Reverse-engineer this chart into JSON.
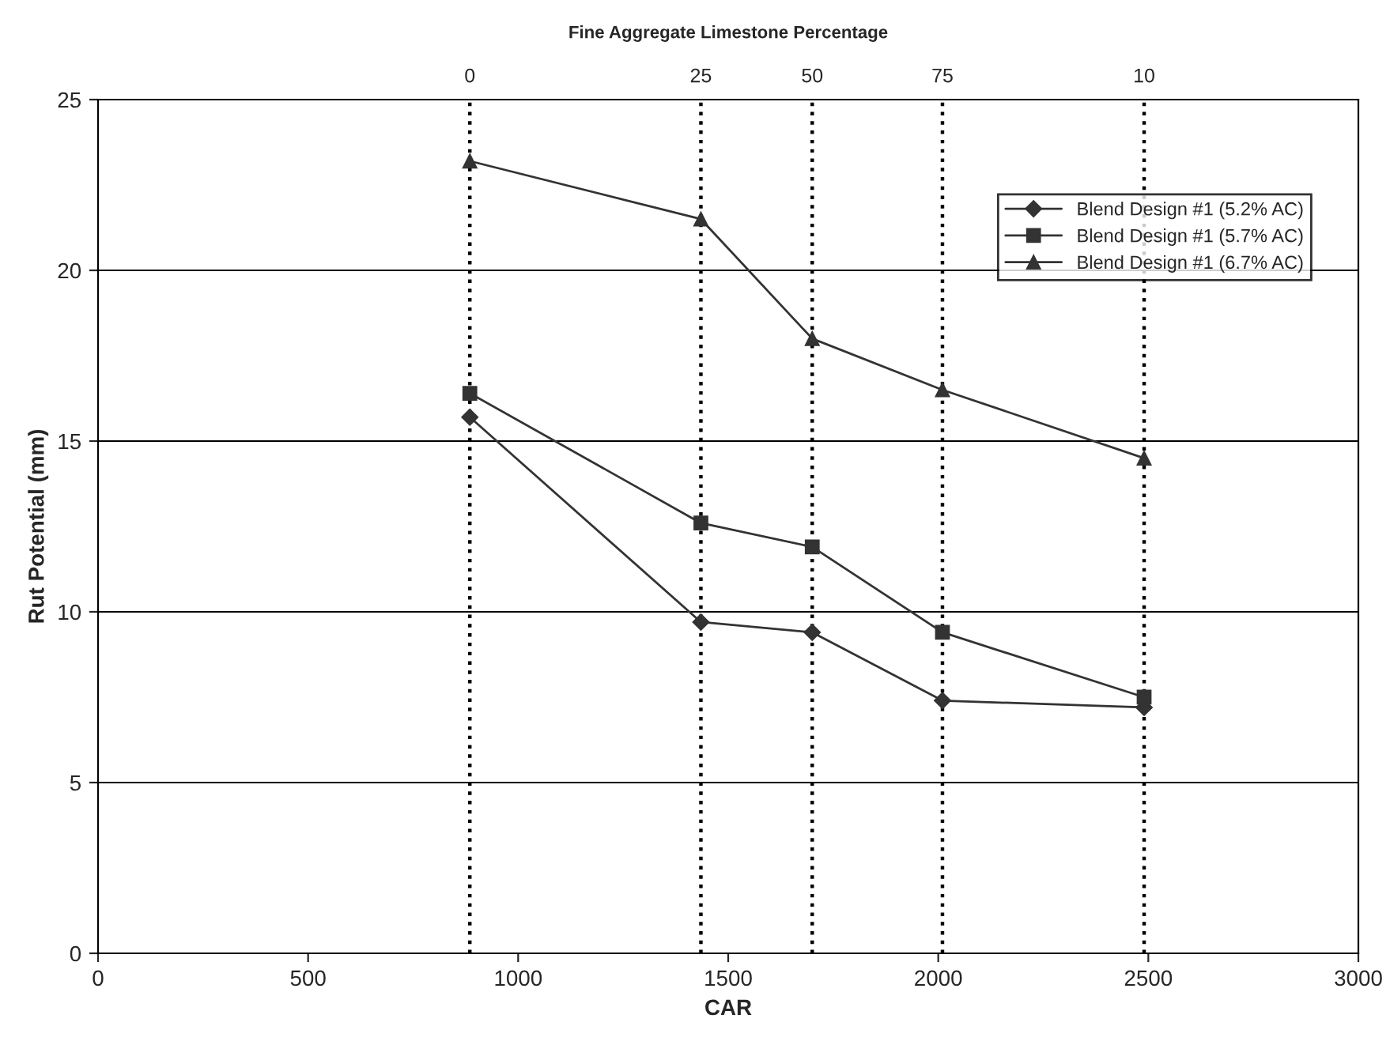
{
  "chart_data": {
    "type": "line",
    "title": "Fine Aggregate Limestone Percentage",
    "xlabel": "CAR",
    "ylabel": "Rut Potential (mm)",
    "x": [
      885,
      1435,
      1700,
      2010,
      2490
    ],
    "series": [
      {
        "name": "Blend Design #1 (5.2% AC)",
        "color": "#333333",
        "marker": "diamond",
        "values": [
          15.7,
          9.7,
          9.4,
          7.4,
          7.2
        ]
      },
      {
        "name": "Blend Design #1 (5.7% AC)",
        "color": "#333333",
        "marker": "square",
        "values": [
          16.4,
          12.6,
          11.9,
          9.4,
          7.5
        ]
      },
      {
        "name": "Blend Design #1 (6.7% AC)",
        "color": "#333333",
        "marker": "triangle",
        "values": [
          23.2,
          21.5,
          18.0,
          16.5,
          14.5
        ]
      }
    ],
    "xlim": [
      0,
      3000
    ],
    "xticks": [
      0,
      500,
      1000,
      1500,
      2000,
      2500,
      3000
    ],
    "ylim": [
      0,
      25
    ],
    "yticks": [
      0,
      5,
      10,
      15,
      20,
      25
    ],
    "ref_lines": [
      {
        "axis": "x",
        "value": 885,
        "color": "#000000",
        "line_style": "dotted"
      },
      {
        "axis": "x",
        "value": 1435,
        "color": "#000000",
        "line_style": "dotted"
      },
      {
        "axis": "x",
        "value": 1700,
        "color": "#000000",
        "line_style": "dotted"
      },
      {
        "axis": "x",
        "value": 2010,
        "color": "#000000",
        "line_style": "dotted"
      },
      {
        "axis": "x",
        "value": 2490,
        "color": "#000000",
        "line_style": "dotted"
      }
    ],
    "annotations": [
      {
        "text": "0",
        "x": 885,
        "y": 25
      },
      {
        "text": "25",
        "x": 1435,
        "y": 25
      },
      {
        "text": "50",
        "x": 1700,
        "y": 25
      },
      {
        "text": "75",
        "x": 2010,
        "y": 25
      },
      {
        "text": "10",
        "x": 2490,
        "y": 25
      }
    ],
    "grid": "y",
    "legend": "top right",
    "line_style": "solid"
  }
}
